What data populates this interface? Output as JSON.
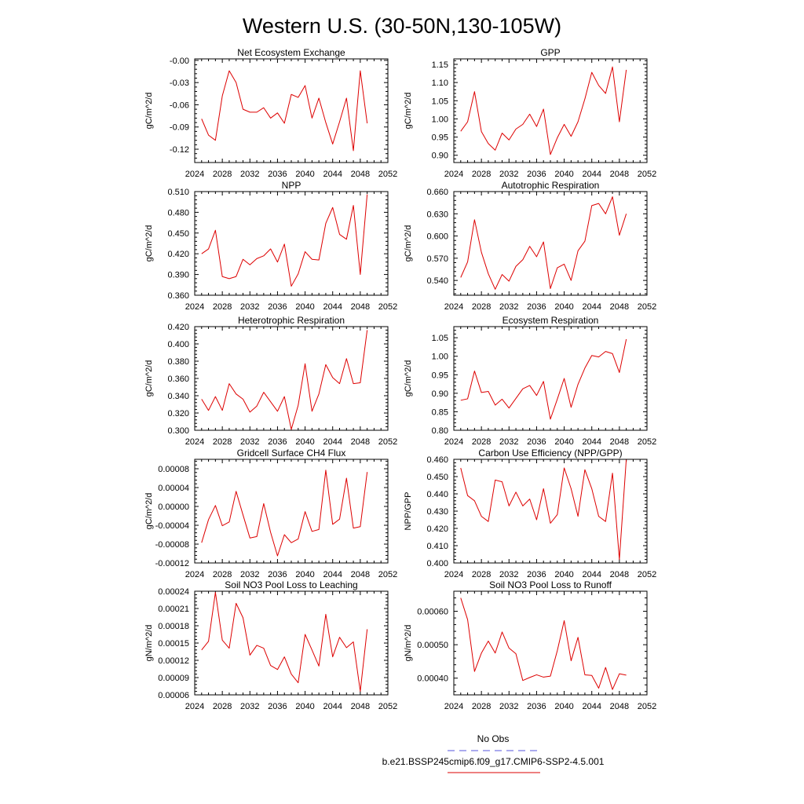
{
  "title": "Western U.S. (30-50N,130-105W)",
  "legend": {
    "entries": [
      {
        "label": "No Obs",
        "color": "#5555dd",
        "dashed": true
      },
      {
        "label": "b.e21.BSSP245cmip6.f09_g17.CMIP6-SSP2-4.5.001",
        "color": "#dd0000",
        "dashed": false
      }
    ]
  },
  "chart_data": [
    {
      "type": "line",
      "title": "Net Ecosystem Exchange",
      "ylabel": "gC/m^2/d",
      "xlim": [
        2024,
        2052
      ],
      "xticks": [
        2024,
        2028,
        2032,
        2036,
        2040,
        2044,
        2048,
        2052
      ],
      "xtick_labels": [
        "2024",
        "2028",
        "2032",
        "2036",
        "2040",
        "2044",
        "2048",
        "2052"
      ],
      "ylim": [
        -0.138,
        0.002
      ],
      "yticks": [
        -0.12,
        -0.09,
        -0.06,
        -0.03,
        -0.0
      ],
      "ytick_labels": [
        "-0.12",
        "-0.09",
        "-0.06",
        "-0.03",
        "-0.00"
      ],
      "series": [
        {
          "color": "#dd0000",
          "x": [
            2025,
            2026,
            2027,
            2028,
            2029,
            2030,
            2031,
            2032,
            2033,
            2034,
            2035,
            2036,
            2037,
            2038,
            2039,
            2040,
            2041,
            2042,
            2043,
            2044,
            2045,
            2046,
            2047,
            2048,
            2049
          ],
          "y": [
            -0.079,
            -0.101,
            -0.108,
            -0.048,
            -0.014,
            -0.03,
            -0.066,
            -0.07,
            -0.07,
            -0.064,
            -0.078,
            -0.071,
            -0.085,
            -0.046,
            -0.05,
            -0.034,
            -0.078,
            -0.051,
            -0.084,
            -0.113,
            -0.083,
            -0.051,
            -0.122,
            -0.014,
            -0.085
          ]
        }
      ]
    },
    {
      "type": "line",
      "title": "GPP",
      "ylabel": "gC/m^2/d",
      "xlim": [
        2024,
        2052
      ],
      "xticks": [
        2024,
        2028,
        2032,
        2036,
        2040,
        2044,
        2048,
        2052
      ],
      "xtick_labels": [
        "2024",
        "2028",
        "2032",
        "2036",
        "2040",
        "2044",
        "2048",
        "2052"
      ],
      "ylim": [
        0.88,
        1.165
      ],
      "yticks": [
        0.9,
        0.95,
        1.0,
        1.05,
        1.1,
        1.15
      ],
      "ytick_labels": [
        "0.90",
        "0.95",
        "1.00",
        "1.05",
        "1.10",
        "1.15"
      ],
      "series": [
        {
          "color": "#dd0000",
          "x": [
            2025,
            2026,
            2027,
            2028,
            2029,
            2030,
            2031,
            2032,
            2033,
            2034,
            2035,
            2036,
            2037,
            2038,
            2039,
            2040,
            2041,
            2042,
            2043,
            2044,
            2045,
            2046,
            2047,
            2048,
            2049
          ],
          "y": [
            0.966,
            0.992,
            1.075,
            0.965,
            0.932,
            0.914,
            0.961,
            0.942,
            0.972,
            0.985,
            1.013,
            0.979,
            1.027,
            0.902,
            0.948,
            0.985,
            0.952,
            0.992,
            1.055,
            1.128,
            1.092,
            1.07,
            1.143,
            0.992,
            1.135
          ]
        }
      ]
    },
    {
      "type": "line",
      "title": "NPP",
      "ylabel": "gC/m^2/d",
      "xlim": [
        2024,
        2052
      ],
      "xticks": [
        2024,
        2028,
        2032,
        2036,
        2040,
        2044,
        2048,
        2052
      ],
      "xtick_labels": [
        "2024",
        "2028",
        "2032",
        "2036",
        "2040",
        "2044",
        "2048",
        "2052"
      ],
      "ylim": [
        0.36,
        0.51
      ],
      "yticks": [
        0.36,
        0.39,
        0.42,
        0.45,
        0.48,
        0.51
      ],
      "ytick_labels": [
        "0.360",
        "0.390",
        "0.420",
        "0.450",
        "0.480",
        "0.510"
      ],
      "series": [
        {
          "color": "#dd0000",
          "x": [
            2025,
            2026,
            2027,
            2028,
            2029,
            2030,
            2031,
            2032,
            2033,
            2034,
            2035,
            2036,
            2037,
            2038,
            2039,
            2040,
            2041,
            2042,
            2043,
            2044,
            2045,
            2046,
            2047,
            2048,
            2049
          ],
          "y": [
            0.42,
            0.427,
            0.454,
            0.387,
            0.384,
            0.387,
            0.412,
            0.404,
            0.413,
            0.417,
            0.427,
            0.408,
            0.434,
            0.373,
            0.391,
            0.423,
            0.412,
            0.411,
            0.464,
            0.487,
            0.448,
            0.441,
            0.49,
            0.39,
            0.506
          ]
        }
      ]
    },
    {
      "type": "line",
      "title": "Autotrophic Respiration",
      "ylabel": "gC/m^2/d",
      "xlim": [
        2024,
        2052
      ],
      "xticks": [
        2024,
        2028,
        2032,
        2036,
        2040,
        2044,
        2048,
        2052
      ],
      "xtick_labels": [
        "2024",
        "2028",
        "2032",
        "2036",
        "2040",
        "2044",
        "2048",
        "2052"
      ],
      "ylim": [
        0.52,
        0.66
      ],
      "yticks": [
        0.54,
        0.57,
        0.6,
        0.63,
        0.66
      ],
      "ytick_labels": [
        "0.540",
        "0.570",
        "0.600",
        "0.630",
        "0.660"
      ],
      "series": [
        {
          "color": "#dd0000",
          "x": [
            2025,
            2026,
            2027,
            2028,
            2029,
            2030,
            2031,
            2032,
            2033,
            2034,
            2035,
            2036,
            2037,
            2038,
            2039,
            2040,
            2041,
            2042,
            2043,
            2044,
            2045,
            2046,
            2047,
            2048,
            2049
          ],
          "y": [
            0.544,
            0.565,
            0.622,
            0.578,
            0.549,
            0.528,
            0.548,
            0.539,
            0.559,
            0.568,
            0.586,
            0.572,
            0.592,
            0.529,
            0.557,
            0.562,
            0.54,
            0.58,
            0.593,
            0.641,
            0.644,
            0.63,
            0.653,
            0.601,
            0.63
          ]
        }
      ]
    },
    {
      "type": "line",
      "title": "Heterotrophic Respiration",
      "ylabel": "gC/m^2/d",
      "xlim": [
        2024,
        2052
      ],
      "xticks": [
        2024,
        2028,
        2032,
        2036,
        2040,
        2044,
        2048,
        2052
      ],
      "xtick_labels": [
        "2024",
        "2028",
        "2032",
        "2036",
        "2040",
        "2044",
        "2048",
        "2052"
      ],
      "ylim": [
        0.3,
        0.42
      ],
      "yticks": [
        0.3,
        0.32,
        0.34,
        0.36,
        0.38,
        0.4,
        0.42
      ],
      "ytick_labels": [
        "0.300",
        "0.320",
        "0.340",
        "0.360",
        "0.380",
        "0.400",
        "0.420"
      ],
      "series": [
        {
          "color": "#dd0000",
          "x": [
            2025,
            2026,
            2027,
            2028,
            2029,
            2030,
            2031,
            2032,
            2033,
            2034,
            2035,
            2036,
            2037,
            2038,
            2039,
            2040,
            2041,
            2042,
            2043,
            2044,
            2045,
            2046,
            2047,
            2048,
            2049
          ],
          "y": [
            0.336,
            0.323,
            0.339,
            0.323,
            0.354,
            0.342,
            0.336,
            0.321,
            0.328,
            0.344,
            0.333,
            0.322,
            0.339,
            0.301,
            0.329,
            0.377,
            0.322,
            0.342,
            0.376,
            0.361,
            0.354,
            0.383,
            0.354,
            0.355,
            0.416
          ]
        }
      ]
    },
    {
      "type": "line",
      "title": "Ecosystem Respiration",
      "ylabel": "gC/m^2/d",
      "xlim": [
        2024,
        2052
      ],
      "xticks": [
        2024,
        2028,
        2032,
        2036,
        2040,
        2044,
        2048,
        2052
      ],
      "xtick_labels": [
        "2024",
        "2028",
        "2032",
        "2036",
        "2040",
        "2044",
        "2048",
        "2052"
      ],
      "ylim": [
        0.8,
        1.08
      ],
      "yticks": [
        0.8,
        0.85,
        0.9,
        0.95,
        1.0,
        1.05
      ],
      "ytick_labels": [
        "0.80",
        "0.85",
        "0.90",
        "0.95",
        "1.00",
        "1.05"
      ],
      "series": [
        {
          "color": "#dd0000",
          "x": [
            2025,
            2026,
            2027,
            2028,
            2029,
            2030,
            2031,
            2032,
            2033,
            2034,
            2035,
            2036,
            2037,
            2038,
            2039,
            2040,
            2041,
            2042,
            2043,
            2044,
            2045,
            2046,
            2047,
            2048,
            2049
          ],
          "y": [
            0.881,
            0.885,
            0.96,
            0.902,
            0.905,
            0.868,
            0.884,
            0.86,
            0.886,
            0.912,
            0.921,
            0.894,
            0.932,
            0.83,
            0.884,
            0.94,
            0.862,
            0.924,
            0.968,
            1.002,
            0.998,
            1.013,
            1.007,
            0.956,
            1.046
          ]
        }
      ]
    },
    {
      "type": "line",
      "title": "Gridcell Surface CH4 Flux",
      "ylabel": "gC/m^2/d",
      "xlim": [
        2024,
        2052
      ],
      "xticks": [
        2024,
        2028,
        2032,
        2036,
        2040,
        2044,
        2048,
        2052
      ],
      "xtick_labels": [
        "2024",
        "2028",
        "2032",
        "2036",
        "2040",
        "2044",
        "2048",
        "2052"
      ],
      "ylim": [
        -0.00012,
        0.0001
      ],
      "yticks": [
        -0.00012,
        -8e-05,
        -4e-05,
        0.0,
        4e-05,
        8e-05
      ],
      "ytick_labels": [
        "-0.00012",
        "-0.00008",
        "-0.00004",
        "0.00000",
        "0.00004",
        "0.00008"
      ],
      "series": [
        {
          "color": "#dd0000",
          "x": [
            2025,
            2026,
            2027,
            2028,
            2029,
            2030,
            2031,
            2032,
            2033,
            2034,
            2035,
            2036,
            2037,
            2038,
            2039,
            2040,
            2041,
            2042,
            2043,
            2044,
            2045,
            2046,
            2047,
            2048,
            2049
          ],
          "y": [
            -7.7e-05,
            -2.8e-05,
            2e-06,
            -4.1e-05,
            -3.3e-05,
            3.2e-05,
            -1.8e-05,
            -6.7e-05,
            -6.4e-05,
            6e-06,
            -5.5e-05,
            -0.000105,
            -6e-05,
            -7.7e-05,
            -6.9e-05,
            -1.1e-05,
            -5.3e-05,
            -4.9e-05,
            7.7e-05,
            -3.8e-05,
            -2.7e-05,
            6e-05,
            -4.6e-05,
            -4.3e-05,
            7.3e-05
          ]
        }
      ]
    },
    {
      "type": "line",
      "title": "Carbon Use Efficiency (NPP/GPP)",
      "ylabel": "NPP/GPP",
      "xlim": [
        2024,
        2052
      ],
      "xticks": [
        2024,
        2028,
        2032,
        2036,
        2040,
        2044,
        2048,
        2052
      ],
      "xtick_labels": [
        "2024",
        "2028",
        "2032",
        "2036",
        "2040",
        "2044",
        "2048",
        "2052"
      ],
      "ylim": [
        0.4,
        0.46
      ],
      "yticks": [
        0.4,
        0.41,
        0.42,
        0.43,
        0.44,
        0.45,
        0.46
      ],
      "ytick_labels": [
        "0.400",
        "0.410",
        "0.420",
        "0.430",
        "0.440",
        "0.450",
        "0.460"
      ],
      "series": [
        {
          "color": "#dd0000",
          "x": [
            2025,
            2026,
            2027,
            2028,
            2029,
            2030,
            2031,
            2032,
            2033,
            2034,
            2035,
            2036,
            2037,
            2038,
            2039,
            2040,
            2041,
            2042,
            2043,
            2044,
            2045,
            2046,
            2047,
            2048,
            2049
          ],
          "y": [
            0.455,
            0.439,
            0.436,
            0.427,
            0.424,
            0.448,
            0.447,
            0.433,
            0.441,
            0.433,
            0.437,
            0.425,
            0.443,
            0.423,
            0.428,
            0.455,
            0.443,
            0.427,
            0.454,
            0.443,
            0.427,
            0.424,
            0.452,
            0.402,
            0.46
          ]
        }
      ]
    },
    {
      "type": "line",
      "title": "Soil NO3 Pool Loss to Leaching",
      "ylabel": "gN/m^2/d",
      "xlim": [
        2024,
        2052
      ],
      "xticks": [
        2024,
        2028,
        2032,
        2036,
        2040,
        2044,
        2048,
        2052
      ],
      "xtick_labels": [
        "2024",
        "2028",
        "2032",
        "2036",
        "2040",
        "2044",
        "2048",
        "2052"
      ],
      "ylim": [
        6e-05,
        0.00024
      ],
      "yticks": [
        6e-05,
        9e-05,
        0.00012,
        0.00015,
        0.00018,
        0.00021,
        0.00024
      ],
      "ytick_labels": [
        "0.00006",
        "0.00009",
        "0.00012",
        "0.00015",
        "0.00018",
        "0.00021",
        "0.00024"
      ],
      "series": [
        {
          "color": "#dd0000",
          "x": [
            2025,
            2026,
            2027,
            2028,
            2029,
            2030,
            2031,
            2032,
            2033,
            2034,
            2035,
            2036,
            2037,
            2038,
            2039,
            2040,
            2041,
            2042,
            2043,
            2044,
            2045,
            2046,
            2047,
            2048,
            2049
          ],
          "y": [
            0.000138,
            0.000153,
            0.000238,
            0.000155,
            0.000141,
            0.000219,
            0.000194,
            0.000129,
            0.000146,
            0.000141,
            0.000111,
            0.000104,
            0.000126,
            9.6e-05,
            8.1e-05,
            0.000165,
            0.000138,
            0.00011,
            0.0002,
            0.000126,
            0.00016,
            0.000142,
            0.000152,
            6.6e-05,
            0.000174
          ]
        }
      ]
    },
    {
      "type": "line",
      "title": "Soil NO3 Pool Loss to Runoff",
      "ylabel": "gN/m^2/d",
      "xlim": [
        2024,
        2052
      ],
      "xticks": [
        2024,
        2028,
        2032,
        2036,
        2040,
        2044,
        2048,
        2052
      ],
      "xtick_labels": [
        "2024",
        "2028",
        "2032",
        "2036",
        "2040",
        "2044",
        "2048",
        "2052"
      ],
      "ylim": [
        0.00035,
        0.00066
      ],
      "yticks": [
        0.0004,
        0.0005,
        0.0006
      ],
      "ytick_labels": [
        "0.00040",
        "0.00050",
        "0.00060"
      ],
      "series": [
        {
          "color": "#dd0000",
          "x": [
            2025,
            2026,
            2027,
            2028,
            2029,
            2030,
            2031,
            2032,
            2033,
            2034,
            2035,
            2036,
            2037,
            2038,
            2039,
            2040,
            2041,
            2042,
            2043,
            2044,
            2045,
            2046,
            2047,
            2048,
            2049
          ],
          "y": [
            0.00064,
            0.000575,
            0.00042,
            0.000475,
            0.000511,
            0.000475,
            0.000538,
            0.00049,
            0.000473,
            0.000393,
            0.000402,
            0.00041,
            0.000403,
            0.000406,
            0.000482,
            0.000572,
            0.000452,
            0.000522,
            0.00041,
            0.000408,
            0.00037,
            0.000432,
            0.000366,
            0.000413,
            0.000409
          ]
        }
      ]
    }
  ]
}
